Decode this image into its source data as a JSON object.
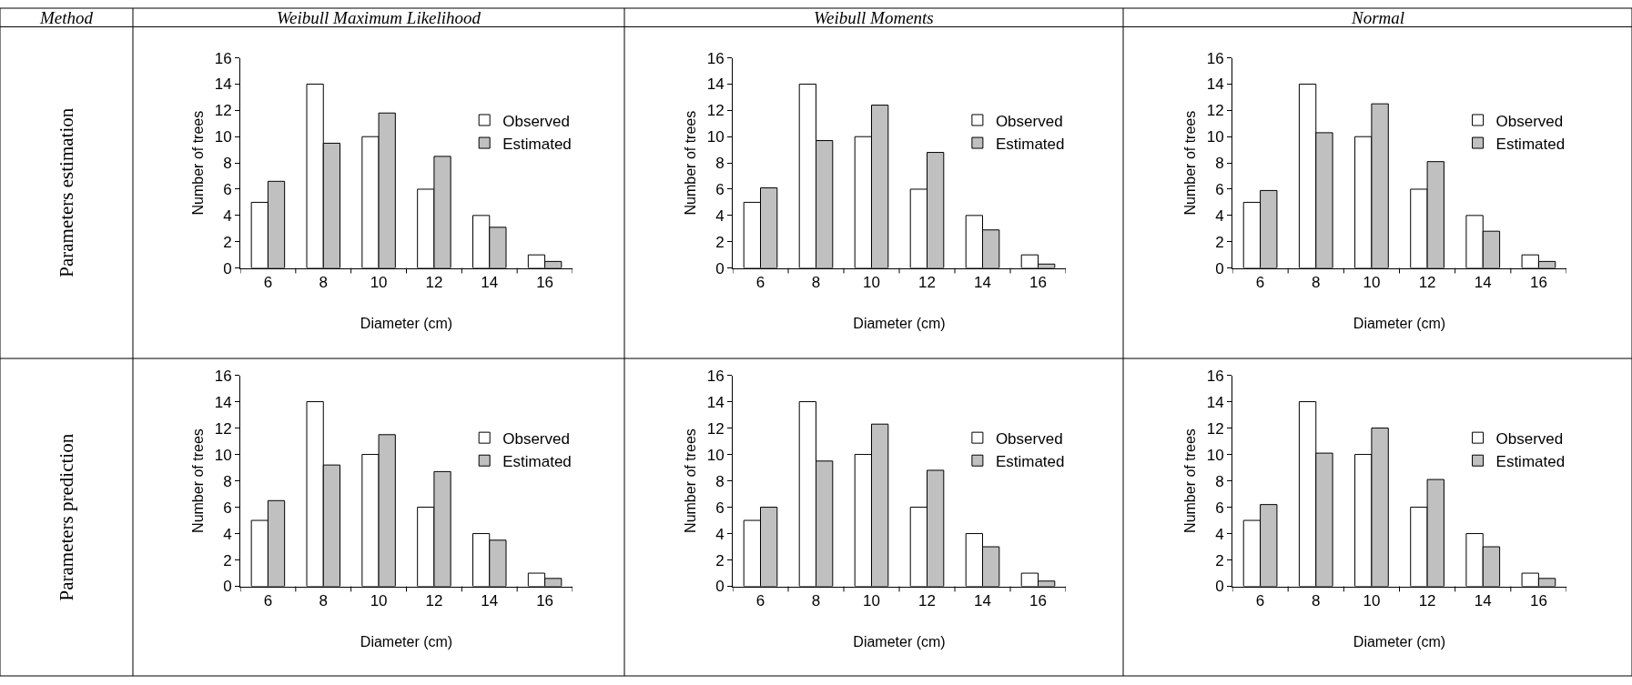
{
  "chart_data": [
    {
      "type": "bar",
      "title": "Weibull Maximum Likelihood",
      "annotations": [
        "Method",
        "Parameters estimation"
      ],
      "xlabel": "Diameter (cm)",
      "ylabel": "Number of trees",
      "categories": [
        "6",
        "8",
        "10",
        "12",
        "14",
        "16"
      ],
      "ylim": [
        0,
        16
      ],
      "yticks": [
        0,
        2,
        4,
        6,
        8,
        10,
        12,
        14,
        16
      ],
      "legend": "right",
      "series": [
        {
          "name": "Observed",
          "color": "#ffffff",
          "values": [
            5,
            14,
            10,
            6,
            4,
            1
          ]
        },
        {
          "name": "Estimated",
          "color": "#c0c0c0",
          "values": [
            6.6,
            9.5,
            11.8,
            8.5,
            3.1,
            0.5
          ]
        }
      ]
    },
    {
      "type": "bar",
      "title": "Weibull Moments",
      "xlabel": "Diameter (cm)",
      "ylabel": "Number of trees",
      "categories": [
        "6",
        "8",
        "10",
        "12",
        "14",
        "16"
      ],
      "ylim": [
        0,
        16
      ],
      "yticks": [
        0,
        2,
        4,
        6,
        8,
        10,
        12,
        14,
        16
      ],
      "legend": "right",
      "series": [
        {
          "name": "Observed",
          "color": "#ffffff",
          "values": [
            5,
            14,
            10,
            6,
            4,
            1
          ]
        },
        {
          "name": "Estimated",
          "color": "#c0c0c0",
          "values": [
            6.1,
            9.7,
            12.4,
            8.8,
            2.9,
            0.3
          ]
        }
      ]
    },
    {
      "type": "bar",
      "title": "Normal",
      "xlabel": "Diameter (cm)",
      "ylabel": "Number of trees",
      "categories": [
        "6",
        "8",
        "10",
        "12",
        "14",
        "16"
      ],
      "ylim": [
        0,
        16
      ],
      "yticks": [
        0,
        2,
        4,
        6,
        8,
        10,
        12,
        14,
        16
      ],
      "legend": "right",
      "series": [
        {
          "name": "Observed",
          "color": "#ffffff",
          "values": [
            5,
            14,
            10,
            6,
            4,
            1
          ]
        },
        {
          "name": "Estimated",
          "color": "#c0c0c0",
          "values": [
            5.9,
            10.3,
            12.5,
            8.1,
            2.8,
            0.5
          ]
        }
      ]
    },
    {
      "type": "bar",
      "annotations": [
        "Parameters prediction"
      ],
      "xlabel": "Diameter (cm)",
      "ylabel": "Number of trees",
      "categories": [
        "6",
        "8",
        "10",
        "12",
        "14",
        "16"
      ],
      "ylim": [
        0,
        16
      ],
      "yticks": [
        0,
        2,
        4,
        6,
        8,
        10,
        12,
        14,
        16
      ],
      "legend": "right",
      "series": [
        {
          "name": "Observed",
          "color": "#ffffff",
          "values": [
            5,
            14,
            10,
            6,
            4,
            1
          ]
        },
        {
          "name": "Estimated",
          "color": "#c0c0c0",
          "values": [
            6.5,
            9.2,
            11.5,
            8.7,
            3.5,
            0.6
          ]
        }
      ]
    },
    {
      "type": "bar",
      "xlabel": "Diameter (cm)",
      "ylabel": "Number of trees",
      "categories": [
        "6",
        "8",
        "10",
        "12",
        "14",
        "16"
      ],
      "ylim": [
        0,
        16
      ],
      "yticks": [
        0,
        2,
        4,
        6,
        8,
        10,
        12,
        14,
        16
      ],
      "legend": "right",
      "series": [
        {
          "name": "Observed",
          "color": "#ffffff",
          "values": [
            5,
            14,
            10,
            6,
            4,
            1
          ]
        },
        {
          "name": "Estimated",
          "color": "#c0c0c0",
          "values": [
            6.0,
            9.5,
            12.3,
            8.8,
            3.0,
            0.4
          ]
        }
      ]
    },
    {
      "type": "bar",
      "xlabel": "Diameter (cm)",
      "ylabel": "Number of trees",
      "categories": [
        "6",
        "8",
        "10",
        "12",
        "14",
        "16"
      ],
      "ylim": [
        0,
        16
      ],
      "yticks": [
        0,
        2,
        4,
        6,
        8,
        10,
        12,
        14,
        16
      ],
      "legend": "right",
      "series": [
        {
          "name": "Observed",
          "color": "#ffffff",
          "values": [
            5,
            14,
            10,
            6,
            4,
            1
          ]
        },
        {
          "name": "Estimated",
          "color": "#c0c0c0",
          "values": [
            6.2,
            10.1,
            12.0,
            8.1,
            3.0,
            0.6
          ]
        }
      ]
    }
  ]
}
